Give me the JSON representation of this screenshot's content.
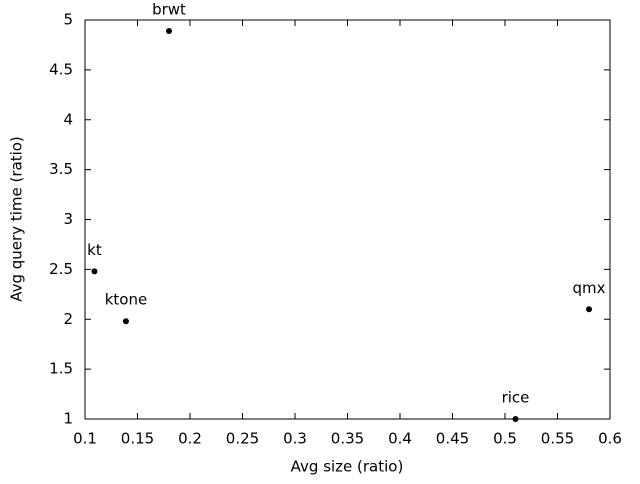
{
  "chart_data": {
    "type": "scatter",
    "x_label": "Avg size (ratio)",
    "y_label": "Avg query time (ratio)",
    "labels": [
      "brwt",
      "kt",
      "ktone",
      "qmx",
      "rice"
    ],
    "x": [
      0.18,
      0.109,
      0.139,
      0.58,
      0.51
    ],
    "values": [
      4.89,
      2.48,
      1.98,
      2.1,
      1.0
    ],
    "color": "#000000",
    "xlim": [
      0.1,
      0.6
    ],
    "xticks": [
      0.1,
      0.15,
      0.2,
      0.25,
      0.3,
      0.35,
      0.4,
      0.45,
      0.5,
      0.55,
      0.6
    ],
    "ylim": [
      1,
      5
    ],
    "yticks": [
      1,
      1.5,
      2,
      2.5,
      3,
      3.5,
      4,
      4.5,
      5
    ],
    "grid": false
  }
}
